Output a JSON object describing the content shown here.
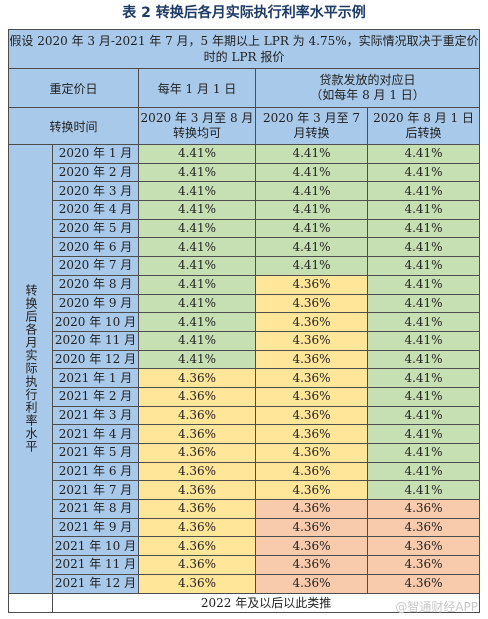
{
  "title": "表 2  转换后各月实际执行利率水平示例",
  "note": "假设 2020 年 3 月-2021 年 7 月，5 年期以上 LPR 为 4.75%，实际情况取决于重定价时的 LPR 报价",
  "header": {
    "reprice_day": "重定价日",
    "jan1": "每年 1 月 1 日",
    "loan_day": "贷款发放的对应日",
    "loan_day_sub": "（如每年 8 月 1 日）",
    "conversion_time": "转换时间",
    "col1": "2020 年 3 月至 8 月转换均可",
    "col2": "2020 年 3 月至 7 月转换",
    "col3": "2020 年 8 月 1 日后转换"
  },
  "side_label": "转换后各月实际执行利率水平",
  "rows": [
    {
      "month": "2020 年 1 月",
      "a": "4.41%",
      "b": "4.41%",
      "c": "4.41%"
    },
    {
      "month": "2020 年 2 月",
      "a": "4.41%",
      "b": "4.41%",
      "c": "4.41%"
    },
    {
      "month": "2020 年 3 月",
      "a": "4.41%",
      "b": "4.41%",
      "c": "4.41%"
    },
    {
      "month": "2020 年 4 月",
      "a": "4.41%",
      "b": "4.41%",
      "c": "4.41%"
    },
    {
      "month": "2020 年 5 月",
      "a": "4.41%",
      "b": "4.41%",
      "c": "4.41%"
    },
    {
      "month": "2020 年 6 月",
      "a": "4.41%",
      "b": "4.41%",
      "c": "4.41%"
    },
    {
      "month": "2020 年 7 月",
      "a": "4.41%",
      "b": "4.41%",
      "c": "4.41%"
    },
    {
      "month": "2020 年 8 月",
      "a": "4.41%",
      "b": "4.36%",
      "c": "4.41%"
    },
    {
      "month": "2020 年 9 月",
      "a": "4.41%",
      "b": "4.36%",
      "c": "4.41%"
    },
    {
      "month": "2020 年 10 月",
      "a": "4.41%",
      "b": "4.36%",
      "c": "4.41%"
    },
    {
      "month": "2020 年 11 月",
      "a": "4.41%",
      "b": "4.36%",
      "c": "4.41%"
    },
    {
      "month": "2020 年 12 月",
      "a": "4.41%",
      "b": "4.36%",
      "c": "4.41%"
    },
    {
      "month": "2021 年 1 月",
      "a": "4.36%",
      "b": "4.36%",
      "c": "4.41%"
    },
    {
      "month": "2021 年 2 月",
      "a": "4.36%",
      "b": "4.36%",
      "c": "4.41%"
    },
    {
      "month": "2021 年 3 月",
      "a": "4.36%",
      "b": "4.36%",
      "c": "4.41%"
    },
    {
      "month": "2021 年 4 月",
      "a": "4.36%",
      "b": "4.36%",
      "c": "4.41%"
    },
    {
      "month": "2021 年 5 月",
      "a": "4.36%",
      "b": "4.36%",
      "c": "4.41%"
    },
    {
      "month": "2021 年 6 月",
      "a": "4.36%",
      "b": "4.36%",
      "c": "4.41%"
    },
    {
      "month": "2021 年 7 月",
      "a": "4.36%",
      "b": "4.36%",
      "c": "4.41%"
    },
    {
      "month": "2021 年 8 月",
      "a": "4.36%",
      "b": "4.36%",
      "c": "4.36%"
    },
    {
      "month": "2021 年 9 月",
      "a": "4.36%",
      "b": "4.36%",
      "c": "4.36%"
    },
    {
      "month": "2021 年 10 月",
      "a": "4.36%",
      "b": "4.36%",
      "c": "4.36%"
    },
    {
      "month": "2021 年 11 月",
      "a": "4.36%",
      "b": "4.36%",
      "c": "4.36%"
    },
    {
      "month": "2021 年 12 月",
      "a": "4.36%",
      "b": "4.36%",
      "c": "4.36%"
    }
  ],
  "colors": {
    "header_blue": "#a9c9ea",
    "green_4_41": "#c6e0b4",
    "yellow_4_36_early": "#ffe699",
    "orange_4_36_late": "#f8cbad"
  },
  "footer": "2022 年及以后以此类推",
  "watermark": "@智通财经APP"
}
